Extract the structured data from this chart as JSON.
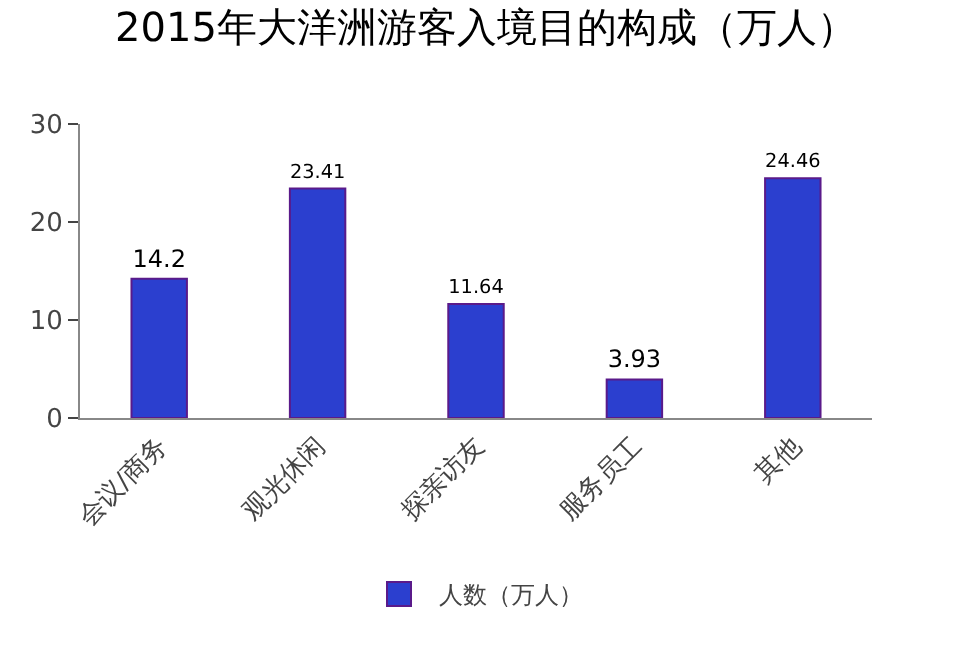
{
  "chart_data": {
    "type": "bar",
    "title": "2015年大洋洲游客入境目的构成（万人）",
    "categories": [
      "会议/商务",
      "观光休闲",
      "探亲访友",
      "服务员工",
      "其他"
    ],
    "series": [
      {
        "name": "人数（万人）",
        "color": "#2b3fcf",
        "values": [
          14.2,
          23.41,
          11.64,
          3.93,
          24.46
        ]
      }
    ],
    "ylim": [
      0,
      30
    ],
    "yticks": [
      0,
      10,
      20,
      30
    ],
    "grid": false,
    "legend": "bottom",
    "data_labels": true
  }
}
